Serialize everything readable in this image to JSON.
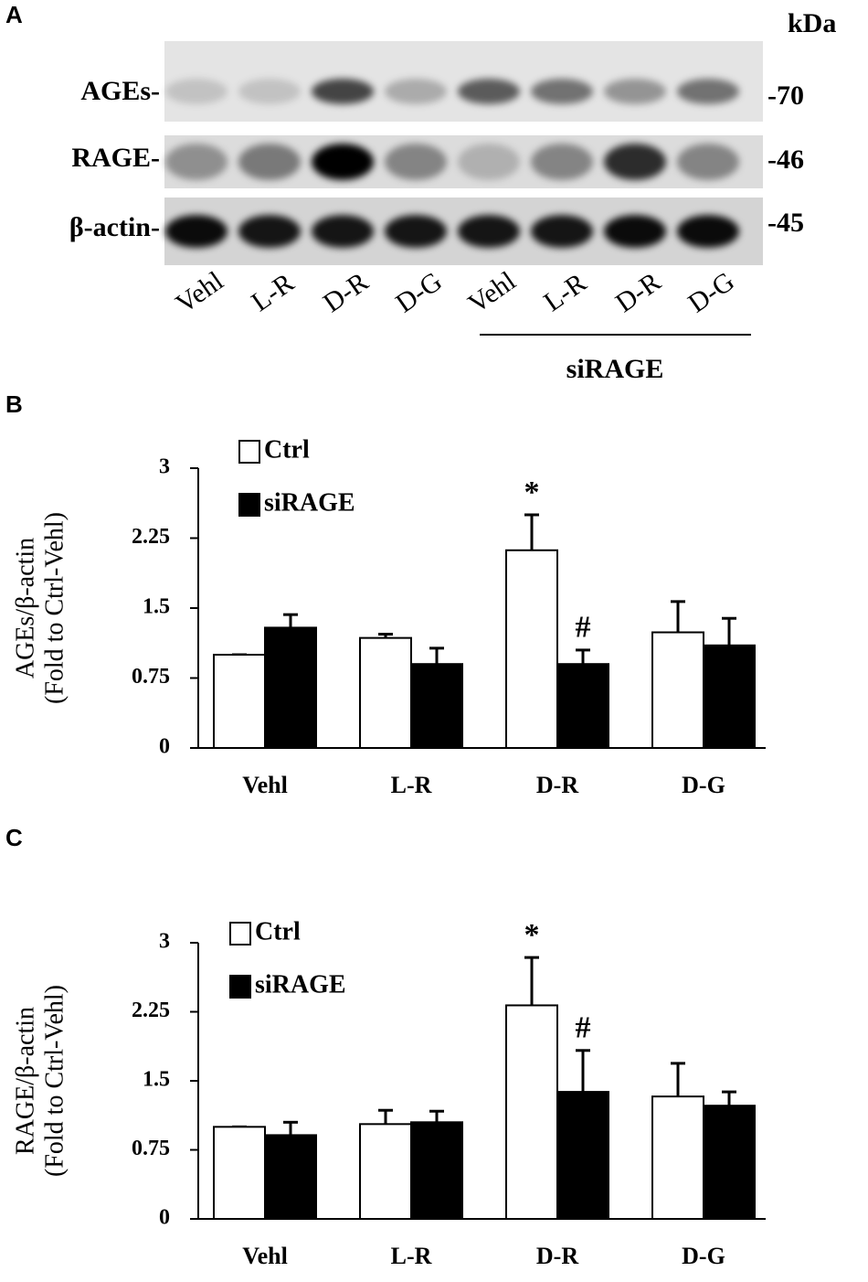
{
  "panel_a": {
    "panel": "A",
    "unit": "kDa",
    "rows": [
      {
        "label": "AGEs-",
        "marker": "-70"
      },
      {
        "label": "RAGE-",
        "marker": "-46"
      },
      {
        "label": "β-actin-",
        "marker": "-45"
      }
    ],
    "lanes": [
      "Vehl",
      "L-R",
      "D-R",
      "D-G",
      "Vehl",
      "L-R",
      "D-R",
      "D-G"
    ],
    "group_label": "siRAGE"
  },
  "chart_data": [
    {
      "type": "bar",
      "panel": "B",
      "y_label": [
        "AGEs/β-actin",
        "(Fold to Ctrl-Vehl)"
      ],
      "categories": [
        "Vehl",
        "L-R",
        "D-R",
        "D-G"
      ],
      "series": [
        {
          "name": "Ctrl",
          "color": "#ffffff",
          "values": [
            1.0,
            1.18,
            2.12,
            1.24
          ],
          "errors": [
            0,
            0.04,
            0.38,
            0.33
          ],
          "annotations": [
            null,
            null,
            "*",
            null
          ]
        },
        {
          "name": "siRAGE",
          "color": "#000000",
          "values": [
            1.29,
            0.9,
            0.9,
            1.1
          ],
          "errors": [
            0.14,
            0.17,
            0.15,
            0.29
          ],
          "annotations": [
            null,
            null,
            "#",
            null
          ]
        }
      ],
      "ylim": [
        0,
        3
      ],
      "yticks": [
        0,
        0.75,
        1.5,
        2.25,
        3
      ]
    },
    {
      "type": "bar",
      "panel": "C",
      "y_label": [
        "RAGE/β-actin",
        "(Fold to Ctrl-Vehl)"
      ],
      "categories": [
        "Vehl",
        "L-R",
        "D-R",
        "D-G"
      ],
      "series": [
        {
          "name": "Ctrl",
          "color": "#ffffff",
          "values": [
            1.0,
            1.03,
            2.32,
            1.33
          ],
          "errors": [
            0,
            0.15,
            0.52,
            0.36
          ],
          "annotations": [
            null,
            null,
            "*",
            null
          ]
        },
        {
          "name": "siRAGE",
          "color": "#000000",
          "values": [
            0.91,
            1.05,
            1.38,
            1.23
          ],
          "errors": [
            0.14,
            0.12,
            0.45,
            0.15
          ],
          "annotations": [
            null,
            null,
            "#",
            null
          ]
        }
      ],
      "ylim": [
        0,
        3
      ],
      "yticks": [
        0,
        0.75,
        1.5,
        2.25,
        3
      ]
    }
  ]
}
